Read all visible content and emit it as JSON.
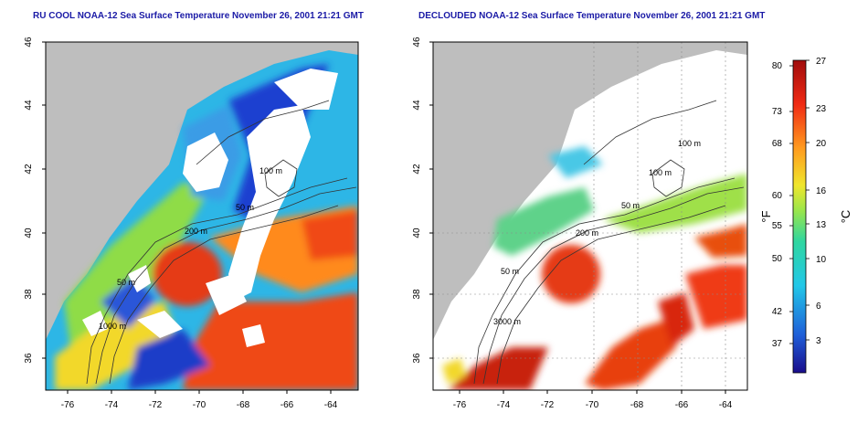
{
  "panels": [
    {
      "title": "RU COOL NOAA-12 Sea Surface Temperature November 26, 2001 21:21 GMT"
    },
    {
      "title": "DECLOUDED NOAA-12 Sea Surface Temperature November 26, 2001 21:21 GMT"
    }
  ],
  "axes": {
    "lat_ticks": [
      "46",
      "44",
      "42",
      "40",
      "38",
      "36"
    ],
    "lon_ticks": [
      "-76",
      "-74",
      "-72",
      "-70",
      "-68",
      "-66",
      "-64"
    ]
  },
  "contour_labels": {
    "left": [
      "100 m",
      "200 m",
      "50 m",
      "1000 m",
      "50 m"
    ],
    "right": [
      "100 m",
      "100 m",
      "200 m",
      "50 m",
      "50 m",
      "3000 m"
    ]
  },
  "colorbar": {
    "fahrenheit_label": "°F",
    "celsius_label": "°C",
    "fahrenheit_ticks": [
      "80",
      "73",
      "68",
      "60",
      "55",
      "50",
      "42",
      "37"
    ],
    "celsius_ticks": [
      "27",
      "23",
      "20",
      "16",
      "13",
      "10",
      "6",
      "3"
    ]
  },
  "colors": {
    "land": "#bebebe",
    "cloud": "#ffffff",
    "title": "#1a1aa6"
  }
}
